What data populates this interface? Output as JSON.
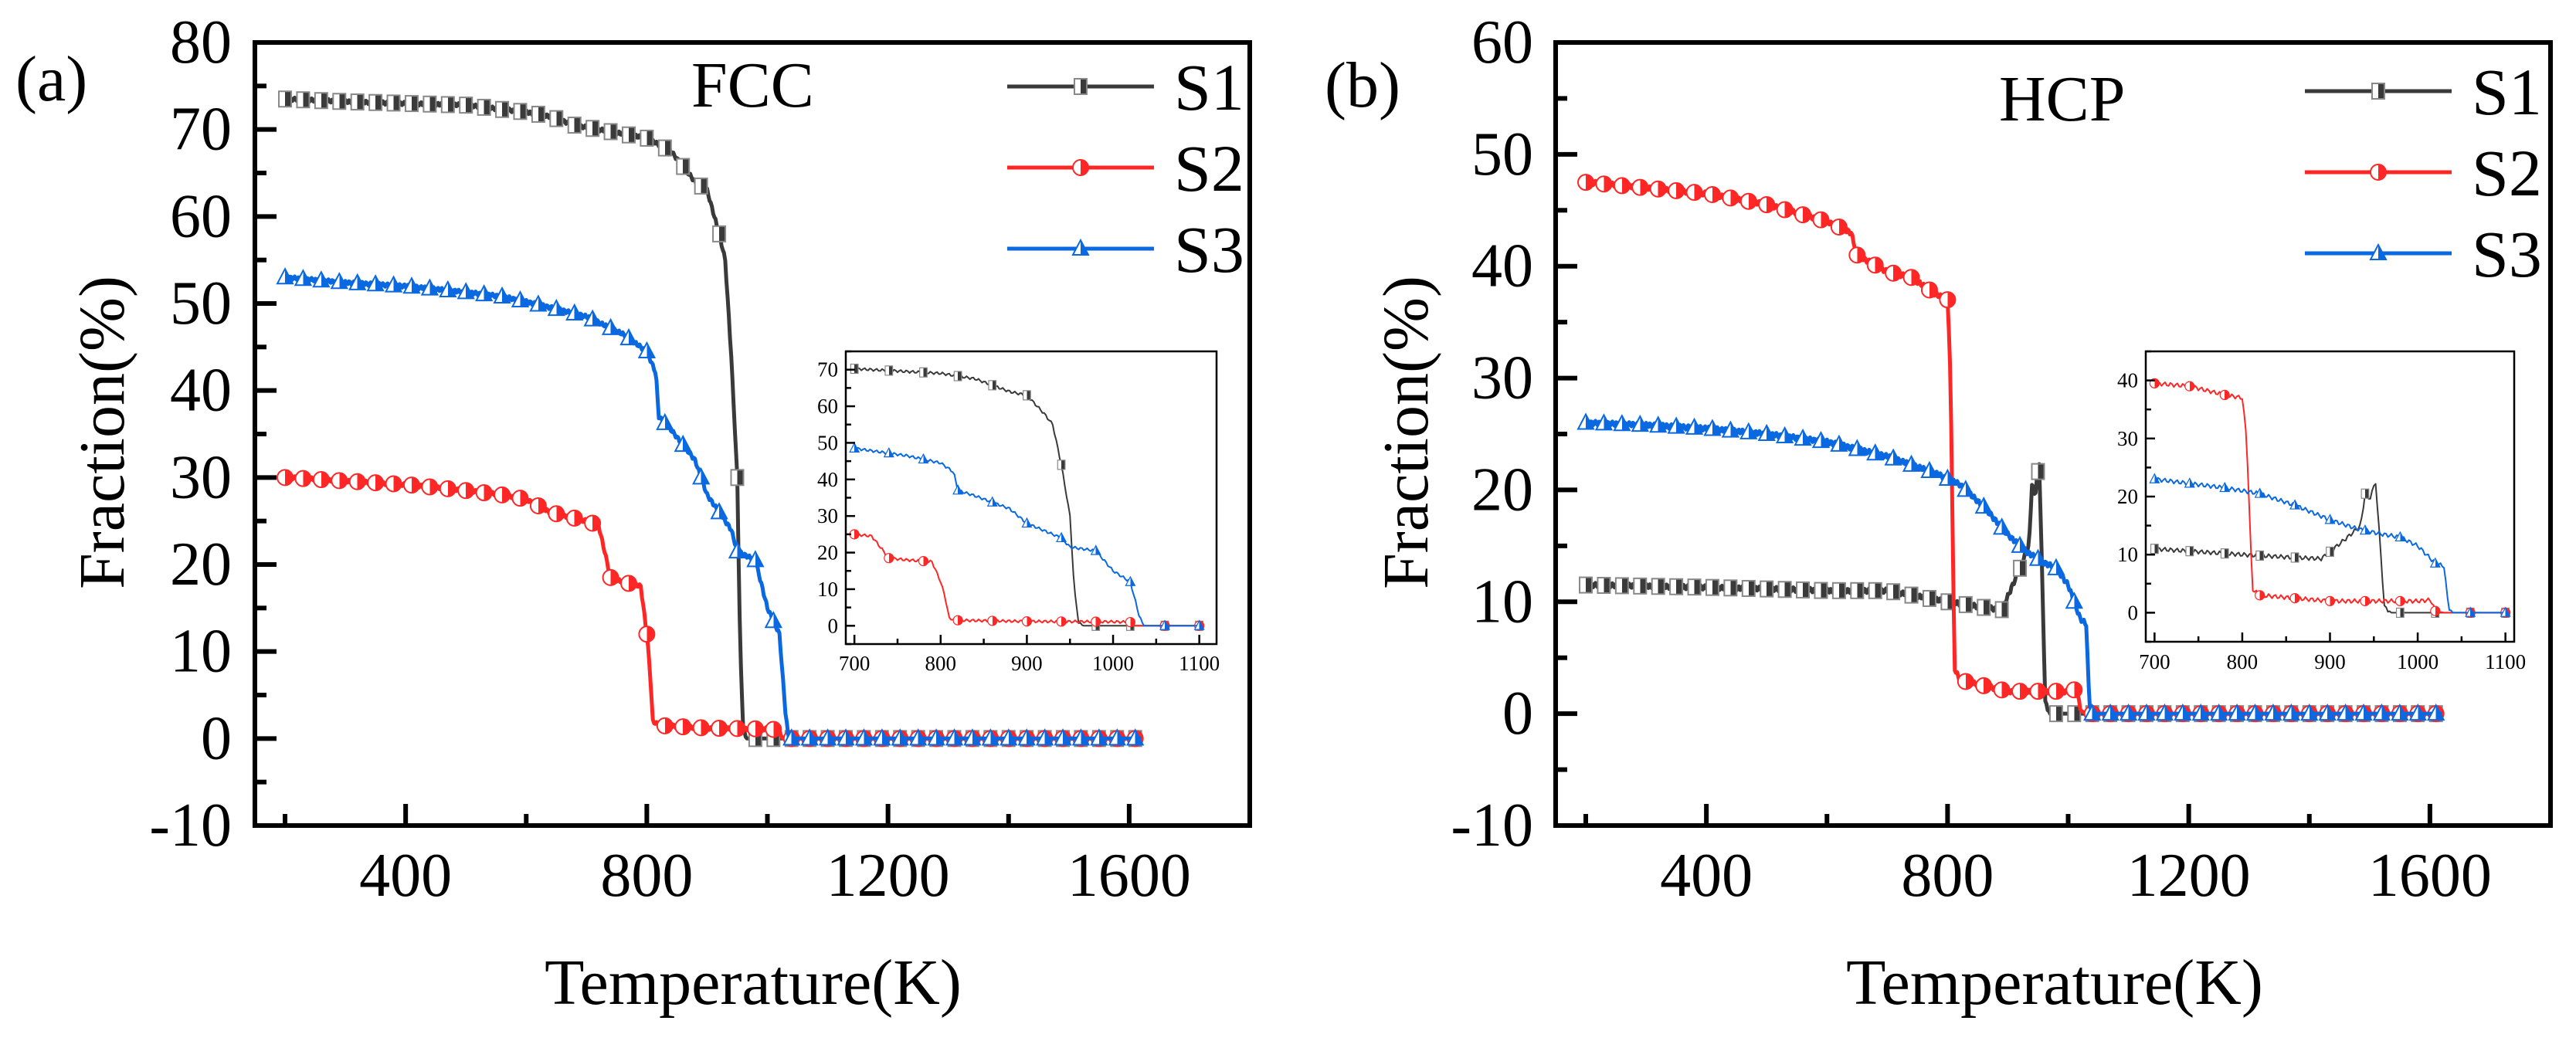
{
  "colors": {
    "S1": "#3a3a3a",
    "S2": "#ff2626",
    "S3": "#0a68e0"
  },
  "chart_data": [
    {
      "panel": "(a)",
      "type": "line",
      "title": "FCC",
      "xlabel": "Temperature(K)",
      "ylabel": "Fraction(%)",
      "xlim": [
        150,
        1800
      ],
      "ylim": [
        -10,
        80
      ],
      "xticks": [
        400,
        800,
        1200,
        1600
      ],
      "yticks": [
        -10,
        0,
        10,
        20,
        30,
        40,
        50,
        60,
        70,
        80
      ],
      "legend": {
        "position": "top-right",
        "entries": [
          "S1",
          "S2",
          "S3"
        ]
      },
      "series": [
        {
          "name": "S1",
          "marker": "square",
          "x": [
            200,
            300,
            400,
            500,
            560,
            600,
            640,
            680,
            720,
            760,
            800,
            840,
            880,
            900,
            920,
            930,
            940,
            950,
            955,
            960,
            965,
            1620
          ],
          "y": [
            73.5,
            73.2,
            73,
            72.8,
            72.3,
            72,
            71.5,
            70.5,
            70,
            69.5,
            69,
            67.5,
            64,
            63,
            58,
            55,
            44,
            30,
            10,
            1,
            0,
            0
          ]
        },
        {
          "name": "S2",
          "marker": "circle",
          "x": [
            200,
            300,
            400,
            500,
            560,
            600,
            640,
            700,
            720,
            740,
            760,
            790,
            800,
            805,
            810,
            820,
            900,
            1000,
            1020,
            1025,
            1620
          ],
          "y": [
            30,
            29.6,
            29.2,
            28.5,
            28,
            27.5,
            26,
            25,
            24.5,
            18.5,
            18,
            17.5,
            12,
            8,
            2,
            1.5,
            1.2,
            1.1,
            1,
            0,
            0
          ]
        },
        {
          "name": "S3",
          "marker": "triangle",
          "x": [
            200,
            300,
            400,
            500,
            560,
            600,
            660,
            700,
            760,
            800,
            815,
            820,
            840,
            880,
            900,
            940,
            950,
            980,
            1000,
            1020,
            1030,
            1035,
            1620
          ],
          "y": [
            53,
            52.4,
            52,
            51.3,
            50.8,
            50.2,
            49.2,
            48.5,
            46.5,
            44.5,
            42,
            37,
            35.5,
            32,
            28,
            24,
            21.5,
            20.5,
            15,
            12,
            3,
            0,
            0
          ]
        }
      ]
    },
    {
      "panel": "(a) inset",
      "type": "line",
      "xlim": [
        690,
        1120
      ],
      "ylim": [
        -5,
        75
      ],
      "xticks": [
        700,
        800,
        900,
        1000,
        1100
      ],
      "yticks": [
        0,
        10,
        20,
        30,
        40,
        50,
        60,
        70
      ],
      "series_ref": "same as (a), range 700-1100 K"
    },
    {
      "panel": "(b)",
      "type": "line",
      "title": "HCP",
      "xlabel": "Temperature(K)",
      "ylabel": "Fraction(%)",
      "xlim": [
        150,
        1800
      ],
      "ylim": [
        -10,
        60
      ],
      "xticks": [
        400,
        800,
        1200,
        1600
      ],
      "yticks": [
        -10,
        0,
        10,
        20,
        30,
        40,
        50,
        60
      ],
      "legend": {
        "position": "top-right",
        "entries": [
          "S1",
          "S2",
          "S3"
        ]
      },
      "series": [
        {
          "name": "S1",
          "marker": "square",
          "x": [
            200,
            400,
            600,
            700,
            800,
            860,
            890,
            900,
            920,
            935,
            940,
            945,
            952,
            958,
            962,
            970,
            1620
          ],
          "y": [
            11.5,
            11.3,
            11,
            11,
            10,
            9.5,
            9.3,
            10.5,
            13,
            15,
            20.5,
            19.5,
            22.5,
            10,
            1,
            0,
            0
          ]
        },
        {
          "name": "S2",
          "marker": "circle",
          "x": [
            200,
            300,
            400,
            500,
            600,
            640,
            650,
            700,
            740,
            780,
            800,
            805,
            810,
            812,
            820,
            860,
            900,
            1000,
            1015,
            1020,
            1030,
            1620
          ],
          "y": [
            47.5,
            47,
            46.5,
            45.5,
            44,
            43,
            41,
            39.5,
            39,
            37.5,
            37,
            30,
            10,
            4,
            3,
            2.5,
            2,
            2,
            2.2,
            0.3,
            0,
            0
          ]
        },
        {
          "name": "S3",
          "marker": "triangle",
          "x": [
            200,
            300,
            400,
            500,
            600,
            700,
            780,
            820,
            860,
            900,
            930,
            960,
            980,
            1000,
            1020,
            1030,
            1035,
            1040,
            1620
          ],
          "y": [
            26,
            25.8,
            25.5,
            25,
            24.3,
            23,
            21.5,
            20.5,
            18.5,
            16,
            14.5,
            13.5,
            13,
            11.5,
            8.5,
            8,
            1,
            0,
            0
          ]
        }
      ]
    },
    {
      "panel": "(b) inset",
      "type": "line",
      "xlim": [
        690,
        1110
      ],
      "ylim": [
        -5,
        45
      ],
      "xticks": [
        700,
        800,
        900,
        1000,
        1100
      ],
      "yticks": [
        0,
        10,
        20,
        30,
        40
      ],
      "series_ref": "same as (b), range 700-1100 K"
    }
  ]
}
